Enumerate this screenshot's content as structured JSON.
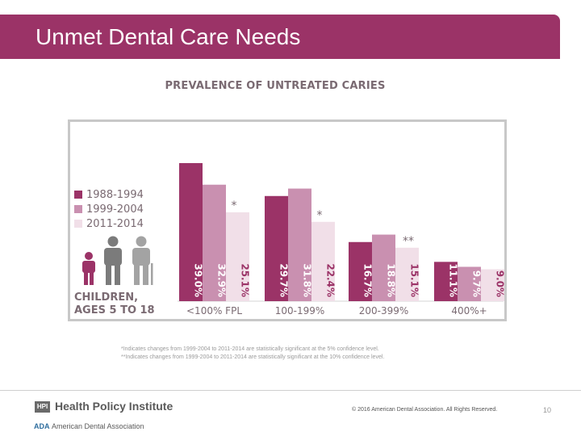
{
  "slide": {
    "title": "Unmet Dental Care Needs",
    "page_number": "10"
  },
  "colors": {
    "title_bar": "#9b3367",
    "series": [
      "#9b3367",
      "#c990b0",
      "#f1dfe8"
    ]
  },
  "chart_data": {
    "type": "bar",
    "title": "PREVALENCE OF UNTREATED CARIES",
    "categories": [
      "<100% FPL",
      "100-199%",
      "200-399%",
      "400%+"
    ],
    "series": [
      {
        "name": "1988-1994",
        "values": [
          39.0,
          29.7,
          16.7,
          11.1
        ],
        "labels": [
          "39.0%",
          "29.7%",
          "16.7%",
          "11.1%"
        ]
      },
      {
        "name": "1999-2004",
        "values": [
          32.9,
          31.8,
          18.8,
          9.7
        ],
        "labels": [
          "32.9%",
          "31.8%",
          "18.8%",
          "9.7%"
        ]
      },
      {
        "name": "2011-2014",
        "values": [
          25.1,
          22.4,
          15.1,
          9.0
        ],
        "labels": [
          "25.1%",
          "22.4%",
          "15.1%",
          "9.0%"
        ]
      }
    ],
    "significance_markers": [
      "*",
      "*",
      "**",
      ""
    ],
    "population_label_line1": "CHILDREN,",
    "population_label_line2": "AGES 5 TO 18",
    "ylim": [
      0,
      40
    ],
    "legend_position": "left"
  },
  "footnotes": {
    "line1": "*Indicates changes from 1999-2004 to 2011-2014 are statistically significant at the 5% confidence level.",
    "line2": "**Indicates changes from 1999-2004 to 2011-2014 are statistically significant at the 10% confidence level."
  },
  "footer": {
    "hpi_badge": "HPI",
    "hpi_name": "Health Policy Institute",
    "ada_mark": "ADA",
    "ada_name": "American Dental Association",
    "copyright": "© 2016 American Dental Association. All Rights Reserved."
  }
}
